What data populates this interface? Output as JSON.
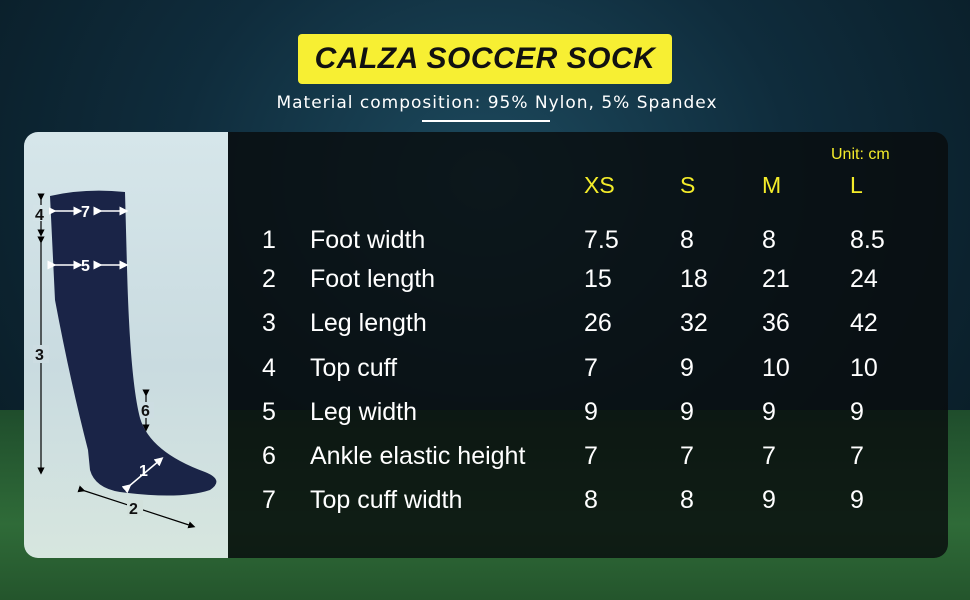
{
  "title": "CALZA SOCCER SOCK",
  "subtitle": "Material composition: 95% Nylon, 5% Spandex",
  "unit": "Unit: cm",
  "sizes": [
    "XS",
    "S",
    "M",
    "L"
  ],
  "rows": [
    {
      "num": "1",
      "label": "Foot width",
      "values": [
        "7.5",
        "8",
        "8",
        "8.5"
      ]
    },
    {
      "num": "2",
      "label": "Foot length",
      "values": [
        "15",
        "18",
        "21",
        "24"
      ]
    },
    {
      "num": "3",
      "label": "Leg length",
      "values": [
        "26",
        "32",
        "36",
        "42"
      ]
    },
    {
      "num": "4",
      "label": "Top cuff",
      "values": [
        "7",
        "9",
        "10",
        "10"
      ]
    },
    {
      "num": "5",
      "label": "Leg width",
      "values": [
        "9",
        "9",
        "9",
        "9"
      ]
    },
    {
      "num": "6",
      "label": "Ankle elastic height",
      "values": [
        "7",
        "7",
        "7",
        "7"
      ]
    },
    {
      "num": "7",
      "label": "Top cuff width",
      "values": [
        "8",
        "8",
        "9",
        "9"
      ]
    }
  ],
  "diagram_labels": [
    "1",
    "2",
    "3",
    "4",
    "5",
    "6",
    "7"
  ],
  "colors": {
    "title_bg": "#f7ef33",
    "header_text": "#f4ec2a",
    "sock": "#1a2447"
  }
}
